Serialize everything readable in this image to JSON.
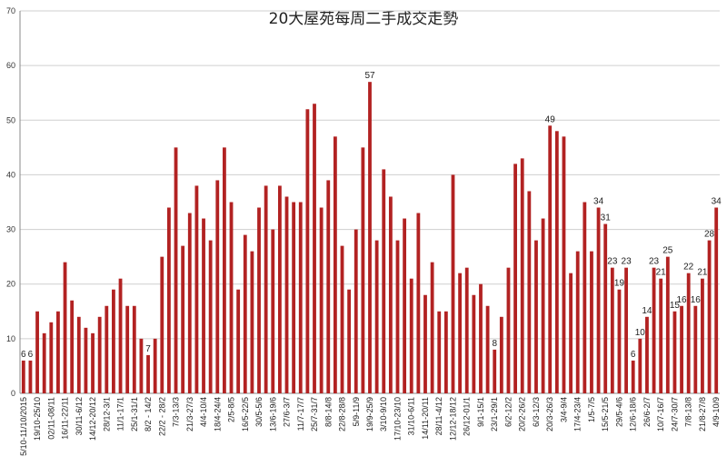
{
  "chart_data": {
    "type": "bar",
    "title": "20大屋苑每周二手成交走勢",
    "xlabel": "",
    "ylabel": "",
    "ylim": [
      0,
      70
    ],
    "yticks": [
      0,
      10,
      20,
      30,
      40,
      50,
      60,
      70
    ],
    "grid": true,
    "legend": "none",
    "bar_color": "#b22222",
    "values": [
      6,
      6,
      15,
      11,
      13,
      15,
      24,
      17,
      14,
      12,
      11,
      14,
      16,
      19,
      21,
      16,
      16,
      10,
      7,
      10,
      25,
      34,
      45,
      27,
      33,
      38,
      32,
      28,
      39,
      45,
      35,
      19,
      29,
      26,
      34,
      38,
      30,
      38,
      36,
      35,
      35,
      52,
      53,
      34,
      39,
      47,
      27,
      19,
      30,
      45,
      57,
      28,
      41,
      36,
      28,
      32,
      21,
      33,
      18,
      24,
      15,
      15,
      40,
      22,
      23,
      18,
      20,
      16,
      8,
      14,
      23,
      42,
      43,
      37,
      28,
      32,
      49,
      48,
      47,
      22,
      26,
      35,
      26,
      34,
      31,
      23,
      19,
      23,
      6,
      10,
      14,
      23,
      21,
      25,
      15,
      16,
      22,
      16,
      21,
      28,
      34
    ],
    "data_labels": [
      "6",
      "6",
      "",
      "",
      "",
      "",
      "",
      "",
      "",
      "",
      "",
      "",
      "",
      "",
      "",
      "",
      "",
      "",
      "7",
      "",
      "",
      "",
      "",
      "",
      "",
      "",
      "",
      "",
      "",
      "",
      "",
      "",
      "",
      "",
      "",
      "",
      "",
      "",
      "",
      "",
      "",
      "",
      "",
      "",
      "",
      "",
      "",
      "",
      "",
      "",
      "57",
      "",
      "",
      "",
      "",
      "",
      "",
      "",
      "",
      "",
      "",
      "",
      "",
      "",
      "",
      "",
      "",
      "",
      "8",
      "",
      "",
      "",
      "",
      "",
      "",
      "",
      "49",
      "",
      "",
      "",
      "",
      "",
      "",
      "34",
      "31",
      "23",
      "19",
      "23",
      "6",
      "10",
      "14",
      "23",
      "21",
      "25",
      "15",
      "16",
      "22",
      "16",
      "21",
      "28",
      "34"
    ],
    "categories": [
      "5/10-11/10/2015",
      "",
      "19/10-25/10",
      "",
      "02/11-08/11",
      "",
      "16/11-22/11",
      "",
      "30/11-6/12",
      "",
      "14/12-20/12",
      "",
      "28/12-3/1",
      "",
      "11/1-17/1",
      "",
      "25/1-31/1",
      "",
      "8/2 - 14/2",
      "",
      "22/2 - 28/2",
      "",
      "7/3-13/3",
      "",
      "21/3-27/3",
      "",
      "4/4-10/4",
      "",
      "18/4-24/4",
      "",
      "2/5-8/5",
      "",
      "16/5-22/5",
      "",
      "30/5-5/6",
      "",
      "13/6-19/6",
      "",
      "27/6-3/7",
      "",
      "11/7-17/7",
      "",
      "25/7-31/7",
      "",
      "8/8-14/8",
      "",
      "22/8-28/8",
      "",
      "5/9-11/9",
      "",
      "19/9-25/9",
      "",
      "3/10-9/10",
      "",
      "17/10-23/10",
      "",
      "31/10-6/11",
      "",
      "14/11-20/11",
      "",
      "28/11-4/12",
      "",
      "12/12-18/12",
      "",
      "26/12-01/1",
      "",
      "9/1-15/1",
      "",
      "23/1-29/1",
      "",
      "6/2-12/2",
      "",
      "20/2-26/2",
      "",
      "6/3-12/3",
      "",
      "20/3-26/3",
      "",
      "3/4-9/4",
      "",
      "17/4-23/4",
      "",
      "1/5-7/5",
      "",
      "15/5-21/5",
      "",
      "29/5-4/6",
      "",
      "12/6-18/6",
      "",
      "26/6-2/7",
      "",
      "10/7-16/7",
      "",
      "24/7-30/7",
      "",
      "7/8-13/8",
      "",
      "21/8-27/8",
      "",
      "4/9-10/9"
    ]
  }
}
